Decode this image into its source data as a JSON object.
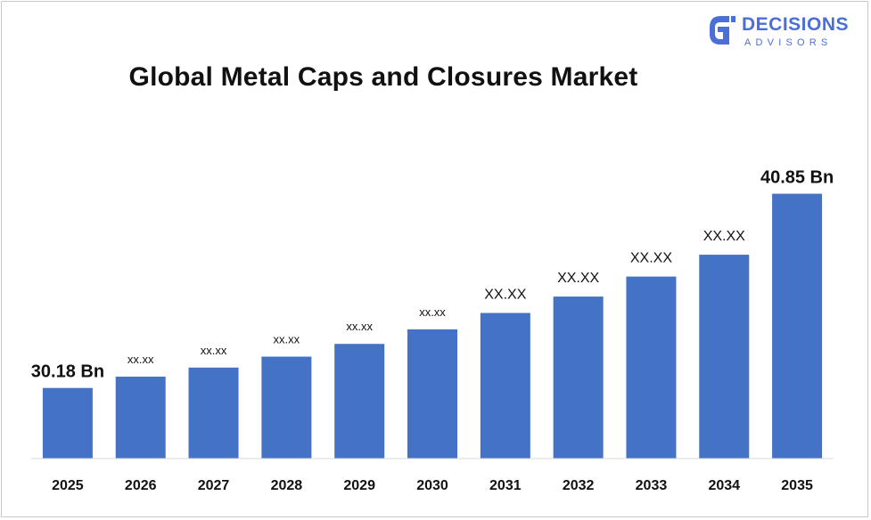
{
  "logo": {
    "word": "DECISIONS",
    "sub": "ADVISORS",
    "color": "#4a6fd8"
  },
  "chart_data": {
    "type": "bar",
    "title": "Global Metal Caps and Closures Market",
    "xlabel": "",
    "ylabel": "",
    "categories": [
      "2025",
      "2026",
      "2027",
      "2028",
      "2029",
      "2030",
      "2031",
      "2032",
      "2033",
      "2034",
      "2035"
    ],
    "values": [
      30.18,
      30.8,
      31.3,
      31.9,
      32.6,
      33.4,
      34.3,
      35.2,
      36.3,
      37.5,
      40.85
    ],
    "data_labels": [
      "30.18 Bn",
      "xx.xx",
      "xx.xx",
      "xx.xx",
      "xx.xx",
      "xx.xx",
      "XX.XX",
      "XX.XX",
      "XX.XX",
      "XX.XX",
      "40.85 Bn"
    ],
    "ylim": [
      26.3,
      42.2
    ],
    "grid": false,
    "bar_color": "#4472c4"
  }
}
